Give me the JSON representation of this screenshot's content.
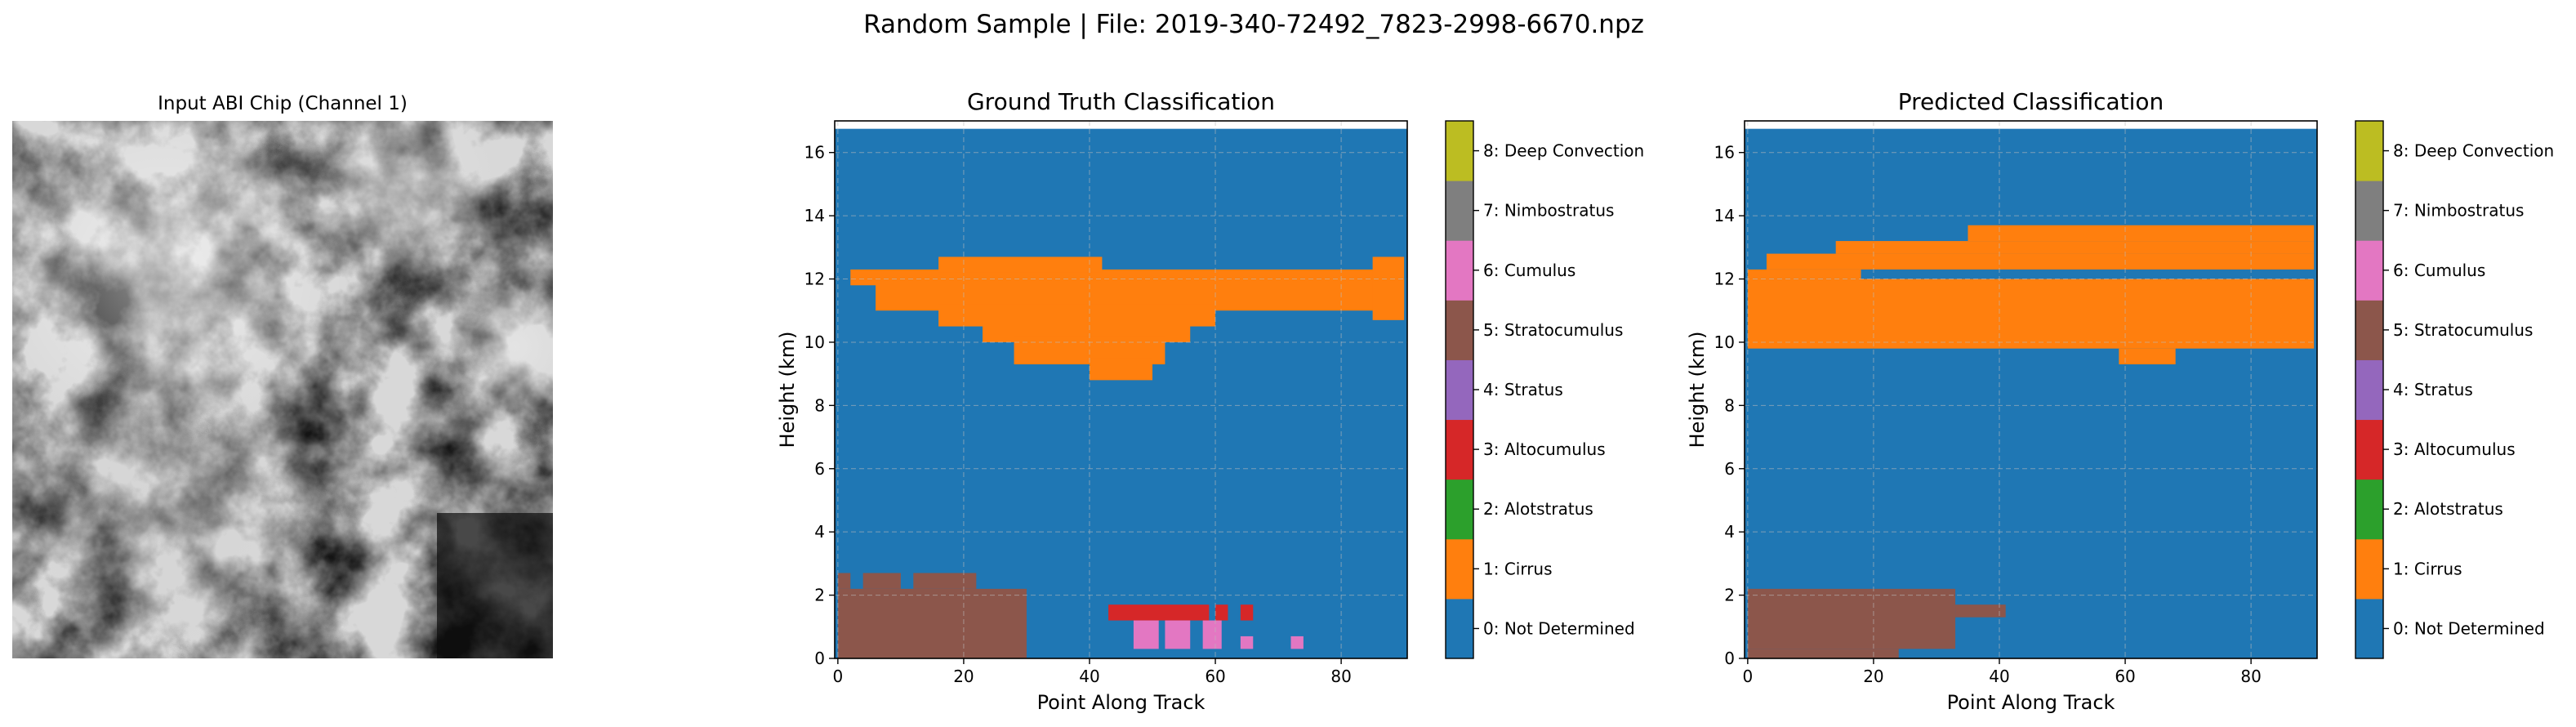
{
  "figure": {
    "suptitle": "Random Sample | File: 2019-340-72492_7823-2998-6670.npz"
  },
  "chip": {
    "title": "Input ABI Chip (Channel 1)"
  },
  "colorbar": {
    "labels": [
      "0: Not Determined",
      "1: Cirrus",
      "2: Alotstratus",
      "3: Altocumulus",
      "4: Stratus",
      "5: Stratocumulus",
      "6: Cumulus",
      "7: Nimbostratus",
      "8: Deep Convection"
    ],
    "colors": [
      "#1f77b4",
      "#ff7f0e",
      "#2ca02c",
      "#d62728",
      "#9467bd",
      "#8c564b",
      "#e377c2",
      "#7f7f7f",
      "#bcbd22",
      "#17becf"
    ]
  },
  "chart_data": [
    {
      "type": "heatmap",
      "title": "Ground Truth Classification",
      "xlabel": "Point Along Track",
      "ylabel": "Height (km)",
      "xlim": [
        -0.5,
        90.5
      ],
      "ylim": [
        0,
        17
      ],
      "xticks": [
        "0",
        "20",
        "40",
        "60",
        "80"
      ],
      "yticks": [
        "0",
        "2",
        "4",
        "6",
        "8",
        "10",
        "12",
        "14",
        "16"
      ],
      "grid": true,
      "background_class": 0,
      "regions": [
        {
          "class": 1,
          "x": [
            2,
            88
          ],
          "y": [
            11.8,
            12.3
          ]
        },
        {
          "class": 1,
          "x": [
            6,
            90
          ],
          "y": [
            11.0,
            12.0
          ]
        },
        {
          "class": 1,
          "x": [
            16,
            60
          ],
          "y": [
            10.5,
            11.2
          ]
        },
        {
          "class": 1,
          "x": [
            23,
            56
          ],
          "y": [
            10.0,
            10.7
          ]
        },
        {
          "class": 1,
          "x": [
            28,
            52
          ],
          "y": [
            9.3,
            10.2
          ]
        },
        {
          "class": 1,
          "x": [
            40,
            50
          ],
          "y": [
            8.8,
            9.5
          ]
        },
        {
          "class": 1,
          "x": [
            16,
            42
          ],
          "y": [
            12.2,
            12.7
          ]
        },
        {
          "class": 1,
          "x": [
            85,
            90
          ],
          "y": [
            10.7,
            12.7
          ]
        },
        {
          "class": 5,
          "x": [
            0,
            30
          ],
          "y": [
            0,
            2.2
          ]
        },
        {
          "class": 5,
          "x": [
            0,
            2
          ],
          "y": [
            2.2,
            2.7
          ]
        },
        {
          "class": 5,
          "x": [
            4,
            10
          ],
          "y": [
            2.2,
            2.7
          ]
        },
        {
          "class": 5,
          "x": [
            12,
            22
          ],
          "y": [
            2.2,
            2.7
          ]
        },
        {
          "class": 3,
          "x": [
            43,
            59
          ],
          "y": [
            1.2,
            1.7
          ]
        },
        {
          "class": 3,
          "x": [
            60,
            62
          ],
          "y": [
            1.2,
            1.7
          ]
        },
        {
          "class": 3,
          "x": [
            64,
            66
          ],
          "y": [
            1.2,
            1.7
          ]
        },
        {
          "class": 6,
          "x": [
            47,
            51
          ],
          "y": [
            0.3,
            1.2
          ]
        },
        {
          "class": 6,
          "x": [
            52,
            56
          ],
          "y": [
            0.3,
            1.2
          ]
        },
        {
          "class": 6,
          "x": [
            58,
            61
          ],
          "y": [
            0.3,
            1.2
          ]
        },
        {
          "class": 6,
          "x": [
            64,
            66
          ],
          "y": [
            0.3,
            0.7
          ]
        },
        {
          "class": 6,
          "x": [
            72,
            74
          ],
          "y": [
            0.3,
            0.7
          ]
        }
      ]
    },
    {
      "type": "heatmap",
      "title": "Predicted Classification",
      "xlabel": "Point Along Track",
      "ylabel": "Height (km)",
      "xlim": [
        -0.5,
        90.5
      ],
      "ylim": [
        0,
        17
      ],
      "xticks": [
        "0",
        "20",
        "40",
        "60",
        "80"
      ],
      "yticks": [
        "0",
        "2",
        "4",
        "6",
        "8",
        "10",
        "12",
        "14",
        "16"
      ],
      "grid": true,
      "background_class": 0,
      "regions": [
        {
          "class": 1,
          "x": [
            0,
            90
          ],
          "y": [
            9.8,
            12.0
          ]
        },
        {
          "class": 1,
          "x": [
            0,
            18
          ],
          "y": [
            12.0,
            12.3
          ]
        },
        {
          "class": 1,
          "x": [
            3,
            90
          ],
          "y": [
            12.3,
            12.8
          ]
        },
        {
          "class": 1,
          "x": [
            14,
            90
          ],
          "y": [
            12.8,
            13.2
          ]
        },
        {
          "class": 1,
          "x": [
            35,
            90
          ],
          "y": [
            13.2,
            13.7
          ]
        },
        {
          "class": 1,
          "x": [
            59,
            68
          ],
          "y": [
            9.3,
            9.8
          ]
        },
        {
          "class": 5,
          "x": [
            0,
            33
          ],
          "y": [
            0.3,
            2.2
          ]
        },
        {
          "class": 5,
          "x": [
            33,
            41
          ],
          "y": [
            1.3,
            1.7
          ]
        },
        {
          "class": 5,
          "x": [
            0,
            24
          ],
          "y": [
            0,
            0.3
          ]
        }
      ]
    }
  ]
}
